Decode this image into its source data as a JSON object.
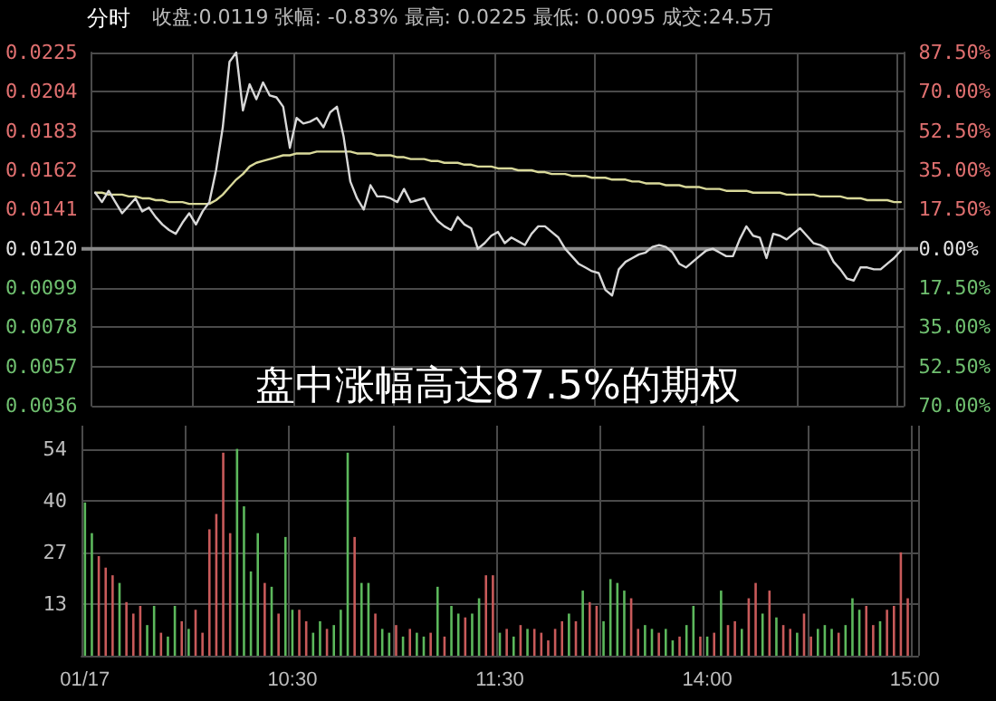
{
  "chart_data": [
    {
      "type": "line",
      "title": "分时",
      "subtitle": "收盘:0.0119 张幅: -0.83% 最高: 0.0225 最低: 0.0095 成交:24.5万",
      "annotations": [
        "盘中涨幅高达87.5%的期权"
      ],
      "categories": [
        null,
        null,
        null,
        null,
        null,
        null,
        null,
        null,
        null,
        null,
        null,
        null,
        null,
        null,
        null,
        null,
        null,
        null,
        null,
        null,
        null,
        null,
        null,
        null,
        null,
        null,
        null,
        null,
        null,
        null,
        null,
        null,
        null,
        null,
        null,
        null,
        null,
        null,
        null,
        null,
        null,
        null,
        null,
        null,
        null,
        null,
        null,
        null,
        null,
        null,
        null,
        null,
        null,
        null,
        null,
        null,
        null,
        null,
        null,
        null,
        null,
        null,
        null,
        null,
        null,
        null,
        null,
        null,
        null,
        null,
        null,
        null,
        null,
        null,
        null,
        null,
        null,
        null,
        null,
        null,
        null,
        null,
        null,
        null,
        null,
        null,
        null,
        null,
        null,
        null,
        null,
        null,
        null,
        null,
        null,
        null,
        null,
        null,
        null,
        null,
        null,
        null,
        null,
        null,
        null,
        null,
        null,
        null,
        null,
        null,
        null,
        null,
        null,
        null,
        null,
        null,
        null,
        null,
        null,
        null,
        null
      ],
      "tick_labels": "y",
      "ylim": [
        0.0036,
        0.0225
      ],
      "yticks": [
        0.0036,
        0.0057,
        0.0078,
        0.0099,
        {
          "value": 0.012,
          "label": "0.0120"
        },
        0.0141,
        0.0162,
        0.0183,
        0.0204,
        0.0225
      ],
      "y2lim": [
        -70,
        87.5
      ],
      "y2ticks": [
        {
          "value": -70,
          "label": "70.00%"
        },
        {
          "value": -52.5,
          "label": "52.50%"
        },
        {
          "value": -35,
          "label": "35.00%"
        },
        {
          "value": -17.5,
          "label": "17.50%"
        },
        {
          "value": 0,
          "label": "0.00%"
        },
        {
          "value": 17.5,
          "label": "17.50%"
        },
        {
          "value": 35,
          "label": "35.00%"
        },
        {
          "value": 52.5,
          "label": "52.50%"
        },
        {
          "value": 70,
          "label": "70.00%"
        },
        {
          "value": 87.5,
          "label": "87.50%"
        }
      ],
      "grid": true,
      "line_style": "solid",
      "ref_lines": [
        {
          "axis": "y",
          "value": 0.012,
          "color": "#8a8a8a"
        }
      ],
      "series": [
        {
          "color": "#d8d8d8",
          "values": [
            0.015,
            0.0145,
            0.0151,
            0.0145,
            0.0139,
            0.0143,
            0.0147,
            0.014,
            0.0142,
            0.0137,
            0.0133,
            0.013,
            0.0128,
            0.0134,
            0.0139,
            0.0133,
            0.014,
            0.0145,
            0.0162,
            0.0185,
            0.022,
            0.0225,
            0.0194,
            0.0208,
            0.02,
            0.0209,
            0.0202,
            0.0201,
            0.0196,
            0.0174,
            0.019,
            0.0187,
            0.0188,
            0.019,
            0.0185,
            0.0193,
            0.0196,
            0.018,
            0.0156,
            0.0147,
            0.0141,
            0.0154,
            0.0148,
            0.0148,
            0.0147,
            0.0145,
            0.0152,
            0.0145,
            0.0146,
            0.0147,
            0.014,
            0.0135,
            0.0132,
            0.013,
            0.0137,
            0.0133,
            0.0131,
            0.012,
            0.0123,
            0.0127,
            0.0129,
            0.0123,
            0.0126,
            0.0124,
            0.0122,
            0.0128,
            0.0132,
            0.0132,
            0.0129,
            0.0126,
            0.012,
            0.0116,
            0.0112,
            0.011,
            0.0108,
            0.0107,
            0.0098,
            0.0095,
            0.0109,
            0.0113,
            0.0115,
            0.0117,
            0.0118,
            0.0121,
            0.0122,
            0.0121,
            0.0118,
            0.0112,
            0.011,
            0.0113,
            0.0116,
            0.0119,
            0.012,
            0.0118,
            0.0116,
            0.0116,
            0.0125,
            0.0132,
            0.0127,
            0.0126,
            0.0115,
            0.0128,
            0.0127,
            0.0125,
            0.0128,
            0.0131,
            0.0127,
            0.0123,
            0.0122,
            0.012,
            0.0113,
            0.0109,
            0.0104,
            0.0103,
            0.011,
            0.011,
            0.0109,
            0.0109,
            0.0112,
            0.0115,
            0.0119
          ]
        },
        {
          "color": "#d9d99a",
          "values": [
            0.015,
            0.015,
            0.0149,
            0.0149,
            0.0149,
            0.0148,
            0.0148,
            0.0147,
            0.0147,
            0.0146,
            0.0146,
            0.0145,
            0.0145,
            0.0145,
            0.0144,
            0.0144,
            0.0144,
            0.0144,
            0.0146,
            0.0149,
            0.0153,
            0.0157,
            0.016,
            0.0164,
            0.0166,
            0.0167,
            0.0168,
            0.0169,
            0.017,
            0.017,
            0.0171,
            0.0171,
            0.0171,
            0.0172,
            0.0172,
            0.0172,
            0.0172,
            0.0172,
            0.0172,
            0.0171,
            0.0171,
            0.0171,
            0.017,
            0.017,
            0.017,
            0.0169,
            0.0169,
            0.0168,
            0.0168,
            0.0168,
            0.0167,
            0.0167,
            0.0166,
            0.0166,
            0.0166,
            0.0165,
            0.0165,
            0.0164,
            0.0164,
            0.0164,
            0.0163,
            0.0163,
            0.0163,
            0.0162,
            0.0162,
            0.0162,
            0.0161,
            0.0161,
            0.016,
            0.016,
            0.016,
            0.0159,
            0.0159,
            0.0159,
            0.0158,
            0.0158,
            0.0158,
            0.0157,
            0.0157,
            0.0157,
            0.0156,
            0.0156,
            0.0155,
            0.0155,
            0.0155,
            0.0154,
            0.0154,
            0.0154,
            0.0153,
            0.0153,
            0.0153,
            0.0152,
            0.0152,
            0.0152,
            0.0151,
            0.0151,
            0.0151,
            0.0151,
            0.015,
            0.015,
            0.015,
            0.015,
            0.015,
            0.0149,
            0.0149,
            0.0149,
            0.0149,
            0.0149,
            0.0148,
            0.0148,
            0.0148,
            0.0148,
            0.0147,
            0.0147,
            0.0147,
            0.0146,
            0.0146,
            0.0146,
            0.0146,
            0.0145,
            0.0145
          ]
        }
      ]
    },
    {
      "type": "bar",
      "categories": [
        "01/17",
        null,
        null,
        null,
        null,
        null,
        null,
        null,
        null,
        null,
        null,
        null,
        null,
        null,
        null,
        null,
        null,
        null,
        null,
        null,
        null,
        null,
        null,
        null,
        null,
        null,
        null,
        null,
        null,
        null,
        "10:30",
        null,
        null,
        null,
        null,
        null,
        null,
        null,
        null,
        null,
        null,
        null,
        null,
        null,
        null,
        null,
        null,
        null,
        null,
        null,
        null,
        null,
        null,
        null,
        null,
        null,
        null,
        null,
        null,
        null,
        "11:30",
        null,
        null,
        null,
        null,
        null,
        null,
        null,
        null,
        null,
        null,
        null,
        null,
        null,
        null,
        null,
        null,
        null,
        null,
        null,
        null,
        null,
        null,
        null,
        null,
        null,
        null,
        null,
        null,
        null,
        "14:00",
        null,
        null,
        null,
        null,
        null,
        null,
        null,
        null,
        null,
        null,
        null,
        null,
        null,
        null,
        null,
        null,
        null,
        null,
        null,
        null,
        null,
        null,
        null,
        null,
        null,
        null,
        null,
        null,
        null,
        "15:00"
      ],
      "ylim": [
        0,
        61
      ],
      "yticks": [
        {
          "value": 13.5,
          "label": "13"
        },
        27,
        {
          "value": 40.5,
          "label": "40"
        },
        54
      ],
      "grid": true,
      "values": [
        40,
        32,
        26,
        23,
        21,
        19,
        14,
        11,
        13,
        8,
        13,
        6,
        5,
        13,
        9,
        7,
        12,
        6,
        33,
        37,
        53,
        32,
        54,
        39,
        22,
        32,
        19,
        18,
        11,
        31,
        12,
        12,
        9,
        6,
        9,
        7,
        8,
        12,
        53,
        31,
        19,
        19,
        11,
        7,
        6,
        8,
        5,
        7,
        6,
        5,
        6,
        18,
        5,
        13,
        11,
        10,
        11,
        15,
        21,
        21,
        6,
        7,
        5,
        8,
        7,
        7,
        6,
        4,
        7,
        9,
        11,
        9,
        17,
        14,
        13,
        9,
        20,
        19,
        17,
        15,
        7,
        8,
        7,
        6,
        7,
        4,
        5,
        8,
        13,
        5,
        5,
        6,
        17,
        8,
        9,
        7,
        15,
        19,
        11,
        17,
        10,
        8,
        7,
        6,
        11,
        5,
        7,
        8,
        7,
        6,
        8,
        15,
        12,
        13,
        8,
        9,
        12,
        13,
        27,
        15,
        null
      ],
      "colors": [
        "#5cb85c",
        "#5cb85c",
        "#c85a5a",
        "#c85a5a",
        "#c85a5a",
        "#5cb85c",
        "#c85a5a",
        "#c85a5a",
        "#c85a5a",
        "#5cb85c",
        "#5cb85c",
        "#c85a5a",
        "#5cb85c",
        "#5cb85c",
        "#c85a5a",
        "#5cb85c",
        "#c85a5a",
        "#c85a5a",
        "#c85a5a",
        "#c85a5a",
        "#c85a5a",
        "#c85a5a",
        "#5cb85c",
        "#5cb85c",
        "#5cb85c",
        "#5cb85c",
        "#c85a5a",
        "#5cb85c",
        "#c85a5a",
        "#5cb85c",
        "#5cb85c",
        "#c85a5a",
        "#c85a5a",
        "#5cb85c",
        "#5cb85c",
        "#c85a5a",
        "#5cb85c",
        "#5cb85c",
        "#5cb85c",
        "#c85a5a",
        "#5cb85c",
        "#5cb85c",
        "#c85a5a",
        "#5cb85c",
        "#5cb85c",
        "#c85a5a",
        "#5cb85c",
        "#c85a5a",
        "#5cb85c",
        "#5cb85c",
        "#c85a5a",
        "#5cb85c",
        "#c85a5a",
        "#5cb85c",
        "#5cb85c",
        "#c85a5a",
        "#5cb85c",
        "#5cb85c",
        "#c85a5a",
        "#c85a5a",
        "#5cb85c",
        "#c85a5a",
        "#5cb85c",
        "#c85a5a",
        "#5cb85c",
        "#c85a5a",
        "#c85a5a",
        "#c85a5a",
        "#c85a5a",
        "#c85a5a",
        "#5cb85c",
        "#c85a5a",
        "#5cb85c",
        "#c85a5a",
        "#c85a5a",
        "#5cb85c",
        "#5cb85c",
        "#5cb85c",
        "#5cb85c",
        "#c85a5a",
        "#c85a5a",
        "#5cb85c",
        "#5cb85c",
        "#c85a5a",
        "#5cb85c",
        "#5cb85c",
        "#c85a5a",
        "#5cb85c",
        "#5cb85c",
        "#c85a5a",
        "#5cb85c",
        "#c85a5a",
        "#5cb85c",
        "#c85a5a",
        "#c85a5a",
        "#5cb85c",
        "#c85a5a",
        "#c85a5a",
        "#5cb85c",
        "#c85a5a",
        "#5cb85c",
        "#c85a5a",
        "#c85a5a",
        "#5cb85c",
        "#c85a5a",
        "#c85a5a",
        "#5cb85c",
        "#5cb85c",
        "#5cb85c",
        "#c85a5a",
        "#5cb85c",
        "#5cb85c",
        "#5cb85c",
        "#c85a5a",
        "#c85a5a",
        "#5cb85c",
        "#c85a5a",
        "#c85a5a",
        "#c85a5a",
        "#c85a5a",
        "#c85a5a"
      ]
    }
  ]
}
